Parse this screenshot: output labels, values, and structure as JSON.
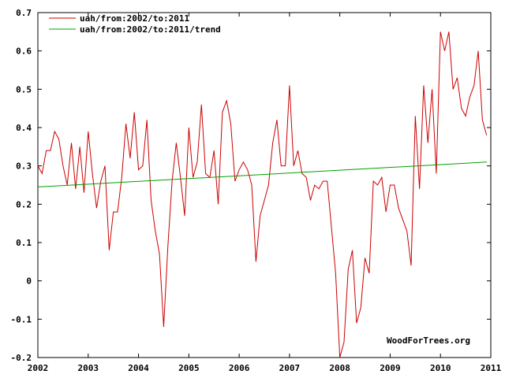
{
  "chart_data": {
    "type": "line",
    "xlim": [
      2002,
      2011
    ],
    "ylim": [
      -0.2,
      0.7
    ],
    "xticks": [
      2002,
      2003,
      2004,
      2005,
      2006,
      2007,
      2008,
      2009,
      2010,
      2011
    ],
    "yticks": [
      -0.2,
      -0.1,
      0,
      0.1,
      0.2,
      0.3,
      0.4,
      0.5,
      0.6,
      0.7
    ],
    "ytick_labels": [
      "-0.2",
      "-0.1",
      "0",
      "0.1",
      "0.2",
      "0.3",
      "0.4",
      "0.5",
      "0.6",
      "0.7"
    ],
    "grid": false,
    "legend_position": "top-left",
    "series": [
      {
        "name": "uah/from:2002/to:2011",
        "color": "#cc0000",
        "x_start": 2002,
        "step": 0.083333,
        "values": [
          0.3,
          0.28,
          0.34,
          0.34,
          0.39,
          0.37,
          0.3,
          0.25,
          0.36,
          0.24,
          0.35,
          0.23,
          0.39,
          0.28,
          0.19,
          0.26,
          0.3,
          0.08,
          0.18,
          0.18,
          0.27,
          0.41,
          0.32,
          0.44,
          0.29,
          0.3,
          0.42,
          0.21,
          0.13,
          0.07,
          -0.12,
          0.09,
          0.26,
          0.36,
          0.27,
          0.17,
          0.4,
          0.27,
          0.31,
          0.46,
          0.28,
          0.27,
          0.34,
          0.2,
          0.44,
          0.47,
          0.41,
          0.26,
          0.29,
          0.31,
          0.29,
          0.25,
          0.05,
          0.17,
          0.21,
          0.25,
          0.36,
          0.42,
          0.3,
          0.3,
          0.51,
          0.3,
          0.34,
          0.28,
          0.27,
          0.21,
          0.25,
          0.24,
          0.26,
          0.26,
          0.14,
          0.02,
          -0.2,
          -0.16,
          0.03,
          0.08,
          -0.11,
          -0.07,
          0.06,
          0.02,
          0.26,
          0.25,
          0.27,
          0.18,
          0.25,
          0.25,
          0.19,
          0.16,
          0.13,
          0.04,
          0.43,
          0.24,
          0.51,
          0.36,
          0.5,
          0.28,
          0.65,
          0.6,
          0.65,
          0.5,
          0.53,
          0.45,
          0.43,
          0.48,
          0.51,
          0.6,
          0.42,
          0.38
        ]
      },
      {
        "name": "uah/from:2002/to:2011/trend",
        "color": "#00a000",
        "x": [
          2002,
          2010.92
        ],
        "values": [
          0.245,
          0.31
        ]
      }
    ]
  },
  "credit": "WoodForTrees.org"
}
